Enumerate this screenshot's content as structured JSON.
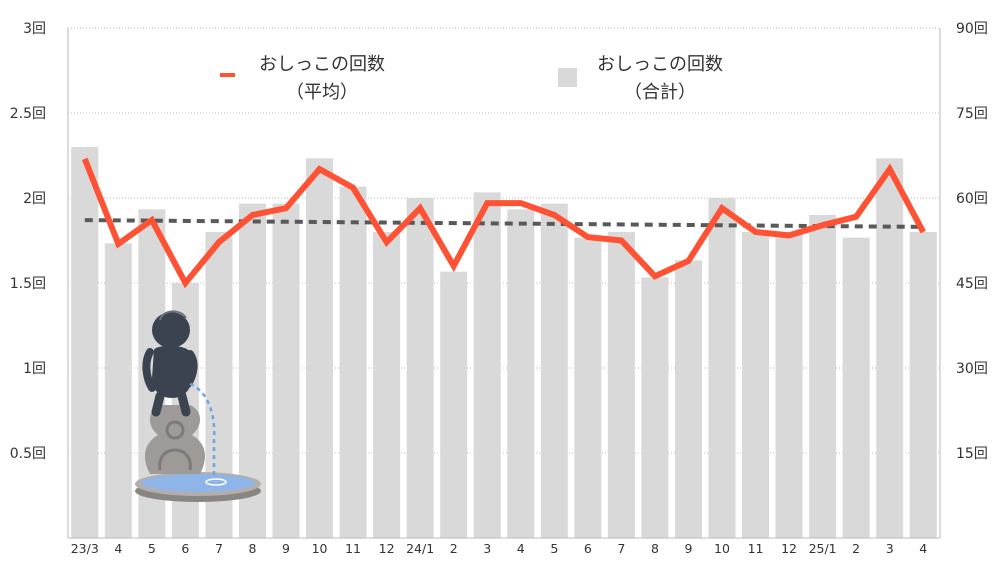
{
  "chart_data": {
    "type": "bar",
    "categories": [
      "23/3",
      "4",
      "5",
      "6",
      "7",
      "8",
      "9",
      "10",
      "11",
      "12",
      "24/1",
      "2",
      "3",
      "4",
      "5",
      "6",
      "7",
      "8",
      "9",
      "10",
      "11",
      "12",
      "25/1",
      "2",
      "3",
      "4"
    ],
    "series": [
      {
        "name": "おしっこの回数（合計）",
        "type": "bar",
        "axis": "right",
        "values": [
          69,
          52,
          58,
          45,
          54,
          59,
          59,
          67,
          62,
          54,
          60,
          47,
          61,
          58,
          59,
          53,
          54,
          46,
          49,
          60,
          54,
          54,
          57,
          53,
          67,
          54
        ]
      },
      {
        "name": "おしっこの回数（平均）",
        "type": "line",
        "axis": "left",
        "values": [
          2.23,
          1.73,
          1.87,
          1.5,
          1.74,
          1.9,
          1.94,
          2.17,
          2.06,
          1.74,
          1.94,
          1.6,
          1.97,
          1.97,
          1.9,
          1.77,
          1.75,
          1.54,
          1.63,
          1.94,
          1.8,
          1.78,
          1.84,
          1.89,
          2.17,
          1.8
        ]
      }
    ],
    "trendline": {
      "style": "dashed",
      "start": 1.87,
      "end": 1.83
    },
    "y_left": {
      "ticks": [
        0.5,
        1,
        1.5,
        2,
        2.5,
        3
      ],
      "tick_labels": [
        "0.5回",
        "1回",
        "1.5回",
        "2回",
        "2.5回",
        "3回"
      ],
      "range": [
        0,
        3
      ]
    },
    "y_right": {
      "ticks": [
        15,
        30,
        45,
        60,
        75,
        90
      ],
      "tick_labels": [
        "15回",
        "30回",
        "45回",
        "60回",
        "75回",
        "90回"
      ],
      "range": [
        0,
        90
      ]
    },
    "legend": {
      "placement": "top-center",
      "items": [
        {
          "line1": "おしっこの回数",
          "line2": "（平均）",
          "symbol": "line"
        },
        {
          "line1": "おしっこの回数",
          "line2": "（合計）",
          "symbol": "square"
        }
      ]
    },
    "grid": "horizontal-dotted",
    "title": "",
    "xlabel": "",
    "ylabel": "",
    "colors": {
      "bar": "#d9d9d9",
      "line": "#ff5133",
      "trend": "#595959",
      "grid": "#bbbbbb",
      "text": "#333333",
      "statue_body": "#3c4350",
      "pedestal": "#9e9a98",
      "water": "#8fb4e8"
    }
  },
  "illustration": {
    "icon": "peeing-boy-statue-icon"
  }
}
